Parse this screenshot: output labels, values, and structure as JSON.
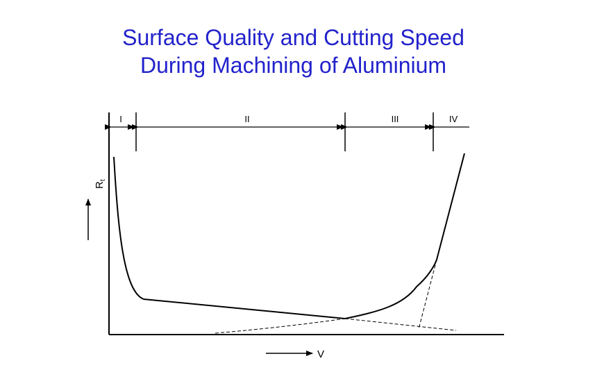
{
  "title": {
    "line1": "Surface Quality and Cutting Speed",
    "line2": "During Machining of Aluminium"
  },
  "colors": {
    "title": "#2222cc",
    "axes": "#000000",
    "curve": "#000000"
  },
  "chart_data": {
    "type": "line",
    "xlabel": "V",
    "ylabel": "Rt",
    "ylabel_parts": {
      "main": "R",
      "sub": "t"
    },
    "ticks": "none",
    "grid": false,
    "regions": [
      {
        "label": "I"
      },
      {
        "label": "II"
      },
      {
        "label": "III"
      },
      {
        "label": "IV"
      }
    ]
  }
}
